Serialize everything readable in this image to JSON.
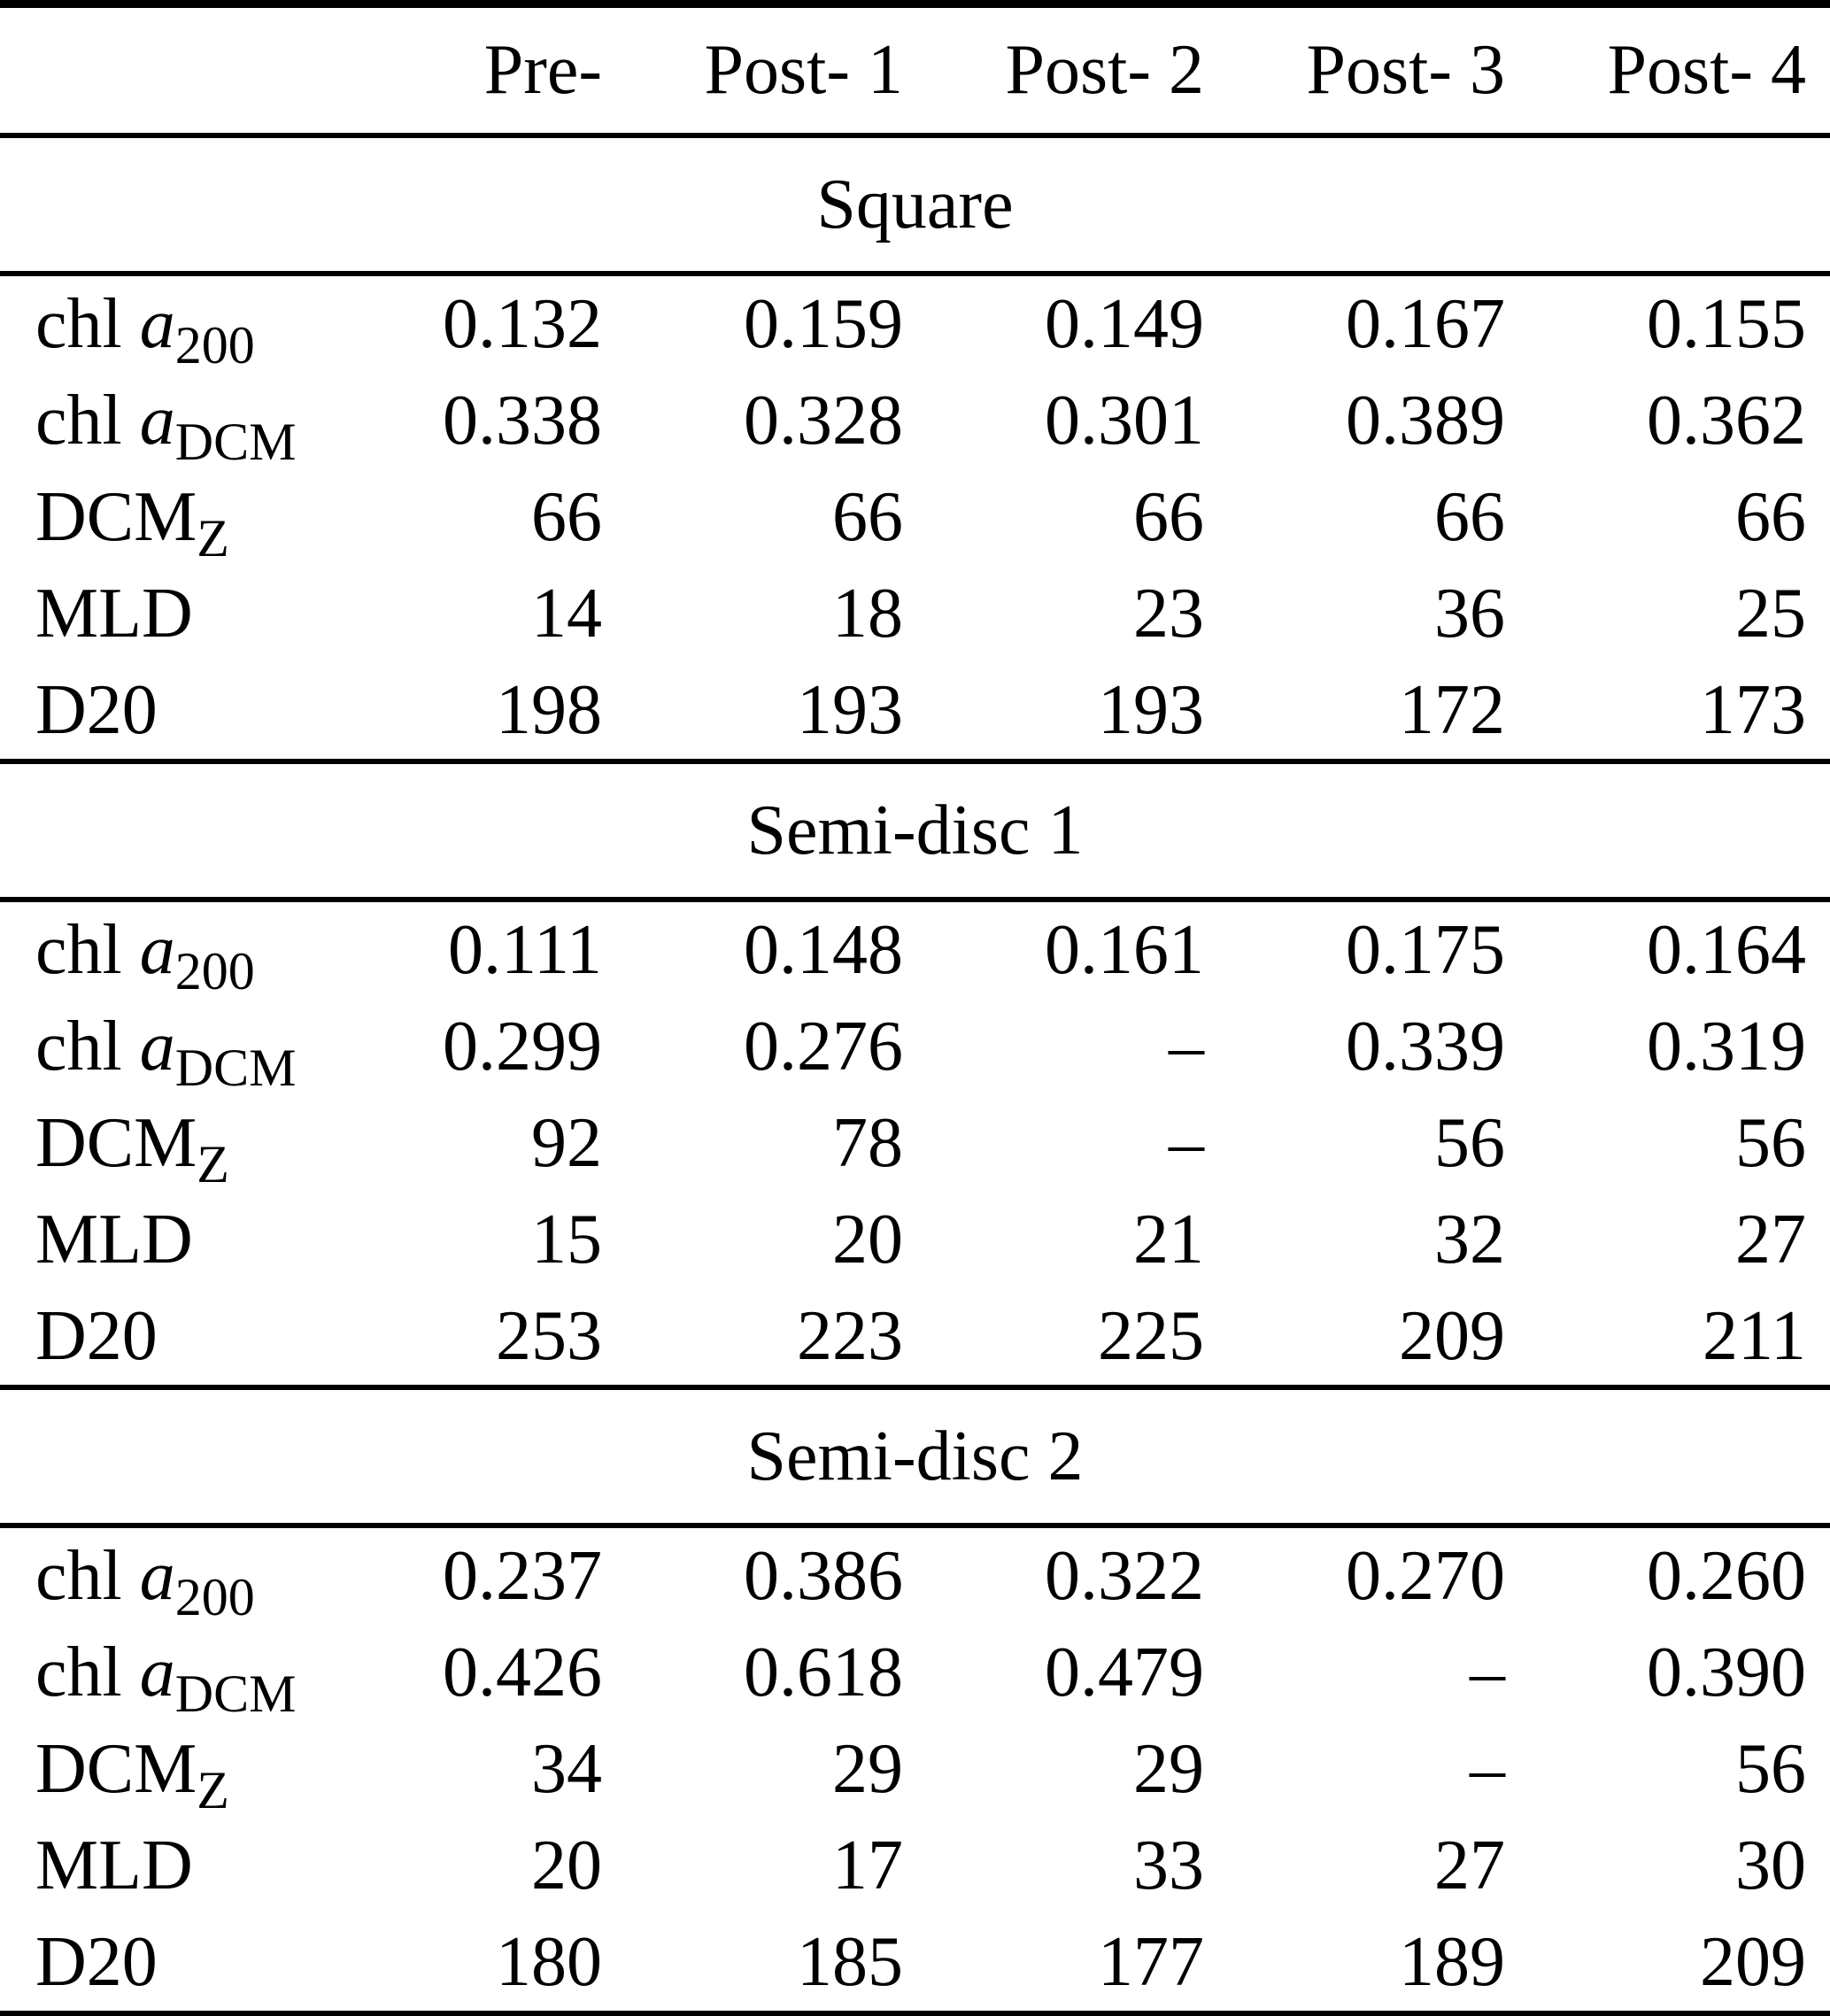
{
  "table": {
    "header": {
      "columns": [
        "Pre-",
        "Post- 1",
        "Post- 2",
        "Post- 3",
        "Post- 4"
      ]
    },
    "sections": [
      {
        "title": "Square",
        "rows": [
          {
            "label": {
              "pre": "chl ",
              "italic": "a",
              "sub": "200"
            },
            "values": [
              "0.132",
              "0.159",
              "0.149",
              "0.167",
              "0.155"
            ]
          },
          {
            "label": {
              "pre": "chl ",
              "italic": "a",
              "sub": "DCM"
            },
            "values": [
              "0.338",
              "0.328",
              "0.301",
              "0.389",
              "0.362"
            ]
          },
          {
            "label": {
              "pre": "DCM",
              "italic": "",
              "sub": "Z"
            },
            "values": [
              "66",
              "66",
              "66",
              "66",
              "66"
            ]
          },
          {
            "label": {
              "pre": "MLD",
              "italic": "",
              "sub": ""
            },
            "values": [
              "14",
              "18",
              "23",
              "36",
              "25"
            ]
          },
          {
            "label": {
              "pre": "D20",
              "italic": "",
              "sub": ""
            },
            "values": [
              "198",
              "193",
              "193",
              "172",
              "173"
            ]
          }
        ]
      },
      {
        "title": "Semi-disc 1",
        "rows": [
          {
            "label": {
              "pre": "chl ",
              "italic": "a",
              "sub": "200"
            },
            "values": [
              "0.111",
              "0.148",
              "0.161",
              "0.175",
              "0.164"
            ]
          },
          {
            "label": {
              "pre": "chl ",
              "italic": "a",
              "sub": "DCM"
            },
            "values": [
              "0.299",
              "0.276",
              "–",
              "0.339",
              "0.319"
            ]
          },
          {
            "label": {
              "pre": "DCM",
              "italic": "",
              "sub": "Z"
            },
            "values": [
              "92",
              "78",
              "–",
              "56",
              "56"
            ]
          },
          {
            "label": {
              "pre": "MLD",
              "italic": "",
              "sub": ""
            },
            "values": [
              "15",
              "20",
              "21",
              "32",
              "27"
            ]
          },
          {
            "label": {
              "pre": "D20",
              "italic": "",
              "sub": ""
            },
            "values": [
              "253",
              "223",
              "225",
              "209",
              "211"
            ]
          }
        ]
      },
      {
        "title": "Semi-disc 2",
        "rows": [
          {
            "label": {
              "pre": "chl ",
              "italic": "a",
              "sub": "200"
            },
            "values": [
              "0.237",
              "0.386",
              "0.322",
              "0.270",
              "0.260"
            ]
          },
          {
            "label": {
              "pre": "chl ",
              "italic": "a",
              "sub": "DCM"
            },
            "values": [
              "0.426",
              "0.618",
              "0.479",
              "–",
              "0.390"
            ]
          },
          {
            "label": {
              "pre": "DCM",
              "italic": "",
              "sub": "Z"
            },
            "values": [
              "34",
              "29",
              "29",
              "–",
              "56"
            ]
          },
          {
            "label": {
              "pre": "MLD",
              "italic": "",
              "sub": ""
            },
            "values": [
              "20",
              "17",
              "33",
              "27",
              "30"
            ]
          },
          {
            "label": {
              "pre": "D20",
              "italic": "",
              "sub": ""
            },
            "values": [
              "180",
              "185",
              "177",
              "189",
              "209"
            ]
          }
        ]
      }
    ]
  }
}
